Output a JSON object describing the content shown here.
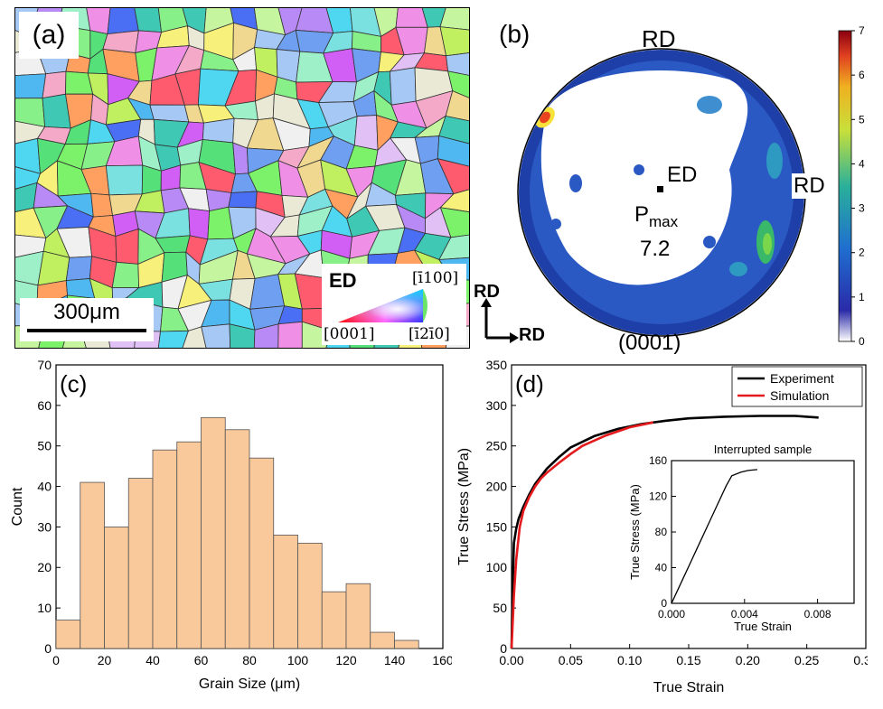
{
  "panel_a": {
    "label": "(a)",
    "scale_bar_label": "300μm",
    "ipf_key": {
      "title": "ED",
      "corner_top": "[ī100]",
      "corner_left": "[0001]",
      "corner_right": "[ī2ī0]"
    },
    "axes": {
      "up": "RD",
      "right": "RD"
    }
  },
  "panel_b": {
    "label": "(b)",
    "top_label": "RD",
    "right_label": "RD",
    "center_label": "ED",
    "pmax_label": "P",
    "pmax_sub": "max",
    "pmax_value": "7.2",
    "plane": "(0001)",
    "colorbar": {
      "min": 0,
      "max": 7,
      "ticks": [
        "0",
        "1",
        "2",
        "3",
        "4",
        "5",
        "6",
        "7"
      ]
    }
  },
  "chart_data": [
    {
      "type": "bar",
      "panel": "(c)",
      "xlabel": "Grain Size (μm)",
      "ylabel": "Count",
      "xlim": [
        0,
        160
      ],
      "ylim": [
        0,
        70
      ],
      "xticks": [
        "0",
        "20",
        "40",
        "60",
        "80",
        "100",
        "120",
        "140",
        "160"
      ],
      "yticks": [
        "0",
        "10",
        "20",
        "30",
        "40",
        "50",
        "60",
        "70"
      ],
      "bin_edges": [
        0,
        10,
        20,
        30,
        40,
        50,
        60,
        70,
        80,
        90,
        100,
        110,
        120,
        130,
        140,
        150
      ],
      "values": [
        7,
        41,
        30,
        42,
        49,
        51,
        57,
        54,
        47,
        28,
        26,
        14,
        16,
        4,
        2
      ],
      "bar_color": "#f9c89b"
    },
    {
      "type": "line",
      "panel": "(d)",
      "xlabel": "True Strain",
      "ylabel": "True Stress (MPa)",
      "xlim": [
        0,
        0.3
      ],
      "ylim": [
        0,
        350
      ],
      "xticks": [
        "0.00",
        "0.05",
        "0.10",
        "0.15",
        "0.20",
        "0.25",
        "0.30"
      ],
      "yticks": [
        "0",
        "50",
        "100",
        "150",
        "200",
        "250",
        "300",
        "350"
      ],
      "legend": "top-right",
      "series": [
        {
          "name": "Experiment",
          "color": "#000000",
          "x": [
            0,
            0.001,
            0.002,
            0.004,
            0.006,
            0.01,
            0.015,
            0.02,
            0.03,
            0.04,
            0.05,
            0.07,
            0.09,
            0.11,
            0.13,
            0.15,
            0.18,
            0.21,
            0.24,
            0.26
          ],
          "y": [
            0,
            80,
            130,
            148,
            160,
            175,
            190,
            203,
            222,
            236,
            248,
            262,
            271,
            277,
            281,
            284,
            286,
            287,
            287,
            285
          ]
        },
        {
          "name": "Simulation",
          "color": "#e41a1c",
          "x": [
            0,
            0.002,
            0.004,
            0.007,
            0.01,
            0.015,
            0.02,
            0.025,
            0.03,
            0.04,
            0.05,
            0.06,
            0.08,
            0.1,
            0.12
          ],
          "y": [
            0,
            65,
            110,
            150,
            170,
            187,
            200,
            210,
            217,
            229,
            240,
            250,
            263,
            273,
            279
          ]
        }
      ],
      "inset": {
        "title": "Interrupted sample",
        "xlabel": "True Strain",
        "ylabel": "True Stress (MPa)",
        "xlim": [
          0,
          0.01
        ],
        "ylim": [
          0,
          160
        ],
        "xticks": [
          "0.000",
          "0.004",
          "0.008"
        ],
        "yticks": [
          "0",
          "40",
          "80",
          "120",
          "160"
        ],
        "x": [
          0,
          0.0005,
          0.001,
          0.0015,
          0.002,
          0.0025,
          0.003,
          0.0033,
          0.0038,
          0.0042,
          0.0047
        ],
        "y": [
          0,
          22,
          44,
          66,
          88,
          110,
          132,
          143,
          147,
          149,
          150
        ]
      }
    }
  ]
}
